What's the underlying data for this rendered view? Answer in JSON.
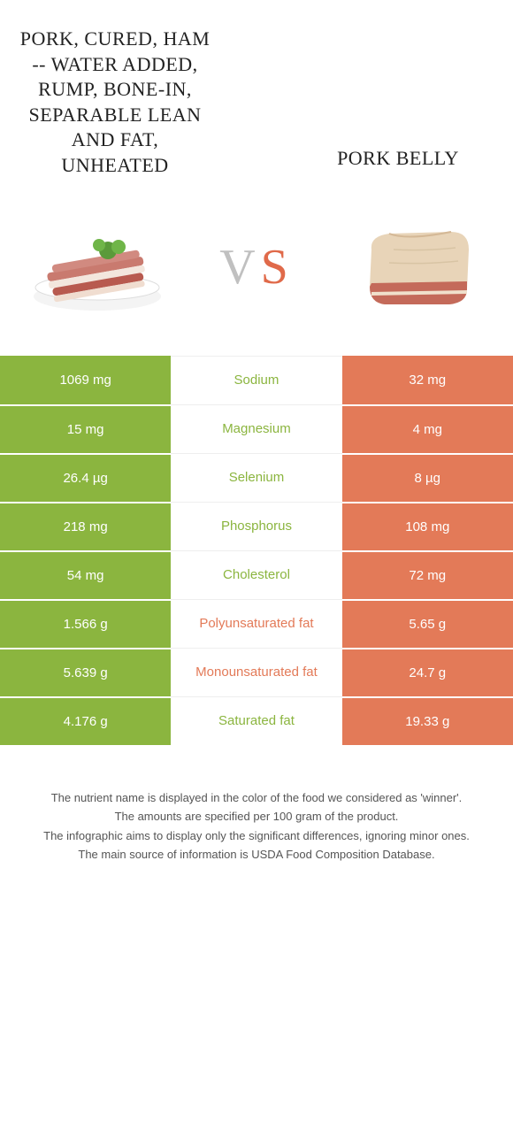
{
  "header": {
    "left_title": "Pork, cured, ham -- water added, rump, bone-in, separable lean and fat, unheated",
    "right_title": "Pork belly",
    "vs_v": "V",
    "vs_s": "S"
  },
  "colors": {
    "left": "#8bb53f",
    "right": "#e37a58",
    "vs_gray": "#c0c0c0"
  },
  "rows": [
    {
      "left": "1069 mg",
      "name": "Sodium",
      "right": "32 mg",
      "winner": "left"
    },
    {
      "left": "15 mg",
      "name": "Magnesium",
      "right": "4 mg",
      "winner": "left"
    },
    {
      "left": "26.4 µg",
      "name": "Selenium",
      "right": "8 µg",
      "winner": "left"
    },
    {
      "left": "218 mg",
      "name": "Phosphorus",
      "right": "108 mg",
      "winner": "left"
    },
    {
      "left": "54 mg",
      "name": "Cholesterol",
      "right": "72 mg",
      "winner": "left"
    },
    {
      "left": "1.566 g",
      "name": "Polyunsaturated fat",
      "right": "5.65 g",
      "winner": "right"
    },
    {
      "left": "5.639 g",
      "name": "Monounsaturated fat",
      "right": "24.7 g",
      "winner": "right"
    },
    {
      "left": "4.176 g",
      "name": "Saturated fat",
      "right": "19.33 g",
      "winner": "left"
    }
  ],
  "footer": {
    "l1": "The nutrient name is displayed in the color of the food we considered as 'winner'.",
    "l2": "The amounts are specified per 100 gram of the product.",
    "l3": "The infographic aims to display only the significant differences, ignoring minor ones.",
    "l4": "The main source of information is USDA Food Composition Database."
  }
}
